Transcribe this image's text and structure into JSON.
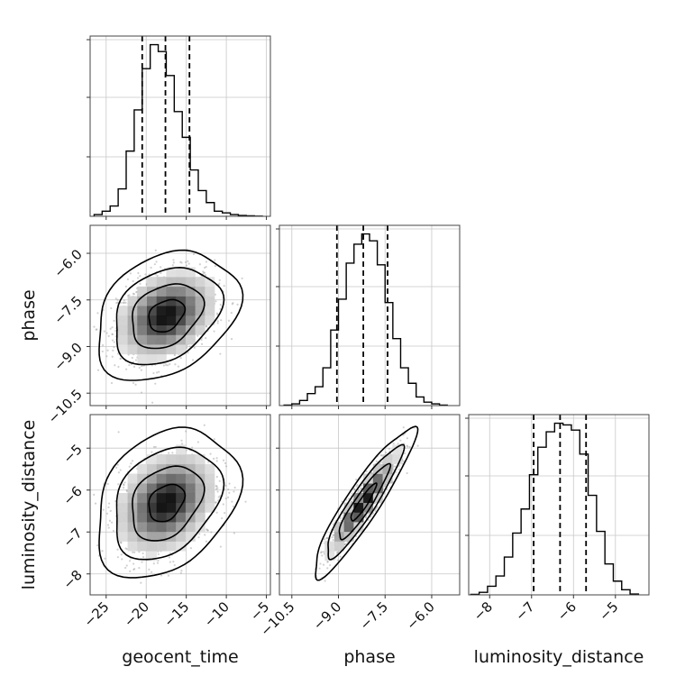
{
  "chart_data": {
    "type": "corner",
    "parameters": [
      {
        "name": "geocent_time",
        "range": [
          -27,
          -4.5
        ],
        "ticks": [
          -25,
          -20,
          -15,
          -10,
          -5
        ],
        "tick_labels": [
          "−25",
          "−20",
          "−15",
          "−10",
          "−5"
        ],
        "quantiles": [
          -20.5,
          -17.6,
          -14.6
        ]
      },
      {
        "name": "phase",
        "range": [
          -10.9,
          -5.1
        ],
        "ticks": [
          -10.5,
          -9.0,
          -7.5,
          -6.0
        ],
        "tick_labels": [
          "−10.5",
          "−9.0",
          "−7.5",
          "−6.0"
        ],
        "quantiles": [
          -9.05,
          -8.2,
          -7.42
        ]
      },
      {
        "name": "luminosity_distance",
        "range": [
          -8.5,
          -4.2
        ],
        "ticks": [
          -8,
          -7,
          -6,
          -5
        ],
        "tick_labels": [
          "−8",
          "−7",
          "−6",
          "−5"
        ],
        "quantiles": [
          -6.95,
          -6.32,
          -5.7
        ]
      }
    ],
    "histograms": {
      "geocent_time": {
        "bin_edges": [
          -26.5,
          -25.5,
          -24.5,
          -23.5,
          -22.5,
          -21.5,
          -20.5,
          -19.5,
          -18.5,
          -17.5,
          -16.5,
          -15.5,
          -14.5,
          -13.5,
          -12.5,
          -11.5,
          -10.5,
          -9.5,
          -8.5,
          -7.5,
          -6.5,
          -5.5
        ],
        "counts": [
          1,
          3,
          6,
          16,
          38,
          62,
          86,
          100,
          96,
          82,
          61,
          46,
          27,
          15,
          8,
          3,
          2,
          1,
          0.5,
          0.3,
          0.1
        ]
      },
      "phase": {
        "bin_edges": [
          -10.75,
          -10.5,
          -10.25,
          -10.0,
          -9.75,
          -9.5,
          -9.25,
          -9.0,
          -8.75,
          -8.5,
          -8.25,
          -8.0,
          -7.75,
          -7.5,
          -7.25,
          -7.0,
          -6.75,
          -6.5,
          -6.25,
          -6.0,
          -5.75,
          -5.5
        ],
        "counts": [
          0.3,
          1,
          3,
          7,
          11,
          22,
          44,
          62,
          83,
          94,
          100,
          96,
          82,
          60,
          39,
          22,
          13,
          5,
          2,
          1,
          0.3
        ]
      },
      "luminosity_distance": {
        "bin_edges": [
          -8.45,
          -8.25,
          -8.05,
          -7.85,
          -7.65,
          -7.45,
          -7.25,
          -7.05,
          -6.85,
          -6.65,
          -6.45,
          -6.25,
          -6.05,
          -5.85,
          -5.65,
          -5.45,
          -5.25,
          -5.05,
          -4.85,
          -4.65,
          -4.45
        ],
        "counts": [
          0.3,
          1.5,
          5,
          11,
          22,
          36,
          50,
          70,
          86,
          95,
          100,
          99,
          96,
          82,
          58,
          37,
          18,
          8,
          3,
          0.5
        ]
      }
    },
    "density_2d": [
      {
        "x": "geocent_time",
        "y": "phase",
        "center": [
          -17.5,
          -8.0
        ],
        "sigma": [
          3.0,
          0.7
        ],
        "rho": 0.3
      },
      {
        "x": "geocent_time",
        "y": "luminosity_distance",
        "center": [
          -17.5,
          -6.3
        ],
        "sigma": [
          3.0,
          0.6
        ],
        "rho": 0.3
      },
      {
        "x": "phase",
        "y": "luminosity_distance",
        "center": [
          -8.2,
          -6.3
        ],
        "sigma": [
          0.55,
          0.6
        ],
        "rho": 0.92
      }
    ],
    "contour_levels_sigma": [
      0.5,
      1.0,
      1.5,
      2.0
    ],
    "grid": true,
    "title": ""
  }
}
